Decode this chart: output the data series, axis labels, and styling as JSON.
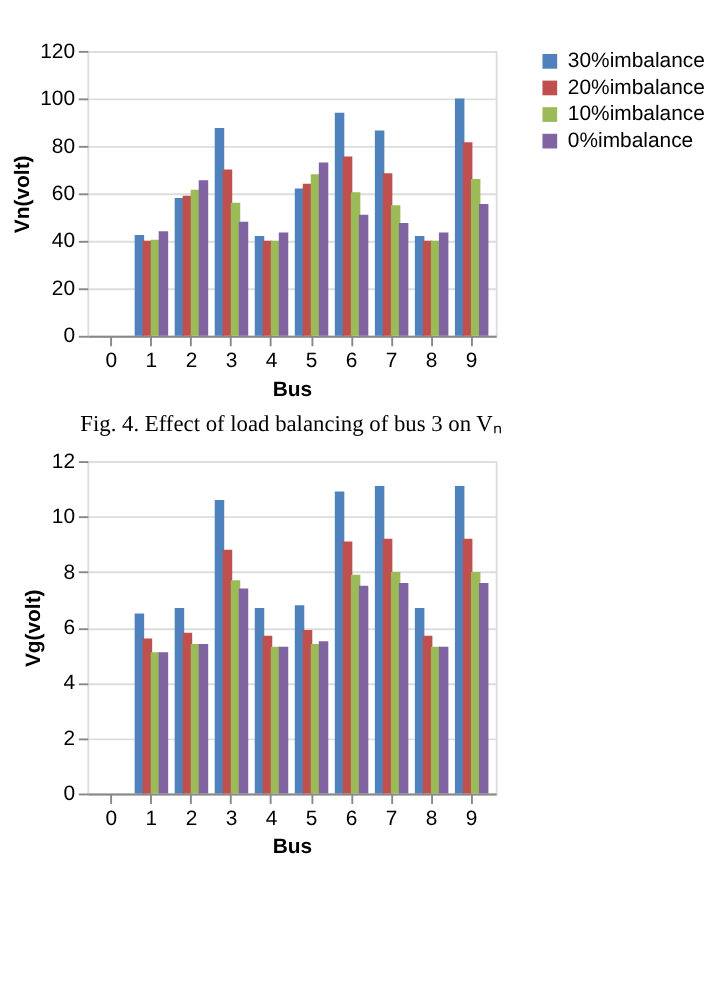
{
  "chart_data": [
    {
      "type": "bar",
      "xlabel": "Bus",
      "ylabel": "Vn(volt)",
      "categories": [
        "0",
        "1",
        "2",
        "3",
        "4",
        "5",
        "6",
        "7",
        "8",
        "9"
      ],
      "ylim": [
        0,
        120
      ],
      "yticks": [
        0,
        20,
        40,
        60,
        80,
        100,
        120
      ],
      "grid": "y",
      "legend": "right",
      "annotations": [
        "Fig. 4. Effect of load balancing of bus 3 on Vₙ"
      ],
      "series": [
        {
          "name": "30%imbalance",
          "color": "#4f81bd",
          "values": [
            0,
            42.5,
            58,
            87.5,
            42,
            62,
            94,
            86.5,
            42,
            100
          ]
        },
        {
          "name": "20%imbalance",
          "color": "#c0504d",
          "values": [
            0,
            40,
            59,
            70,
            40,
            64,
            75.5,
            68.5,
            40,
            81.5
          ]
        },
        {
          "name": "10%imbalance",
          "color": "#9bbb59",
          "values": [
            0,
            40.5,
            61.5,
            56,
            40,
            68,
            60.5,
            55,
            40,
            66
          ]
        },
        {
          "name": "0%imbalance",
          "color": "#8064a2",
          "values": [
            0,
            44,
            65.5,
            48,
            43.5,
            73,
            51,
            47.5,
            43.5,
            55.5
          ]
        }
      ]
    },
    {
      "type": "bar",
      "xlabel": "Bus",
      "ylabel": "Vg(volt)",
      "categories": [
        "0",
        "1",
        "2",
        "3",
        "4",
        "5",
        "6",
        "7",
        "8",
        "9"
      ],
      "ylim": [
        0,
        12
      ],
      "yticks": [
        0,
        2,
        4,
        6,
        8,
        10,
        12
      ],
      "grid": "y",
      "legend": "right",
      "series": [
        {
          "name": "30%imbalance",
          "color": "#4f81bd",
          "values": [
            0,
            6.5,
            6.7,
            10.6,
            6.7,
            6.8,
            10.9,
            11.1,
            6.7,
            11.1
          ]
        },
        {
          "name": "20%imbalance",
          "color": "#c0504d",
          "values": [
            0,
            5.6,
            5.8,
            8.8,
            5.7,
            5.9,
            9.1,
            9.2,
            5.7,
            9.2
          ]
        },
        {
          "name": "10%imbalance",
          "color": "#9bbb59",
          "values": [
            0,
            5.1,
            5.4,
            7.7,
            5.3,
            5.4,
            7.9,
            8.0,
            5.3,
            8.0
          ]
        },
        {
          "name": "0%imbalance",
          "color": "#8064a2",
          "values": [
            0,
            5.1,
            5.4,
            7.4,
            5.3,
            5.5,
            7.5,
            7.6,
            5.3,
            7.6
          ]
        }
      ]
    }
  ]
}
